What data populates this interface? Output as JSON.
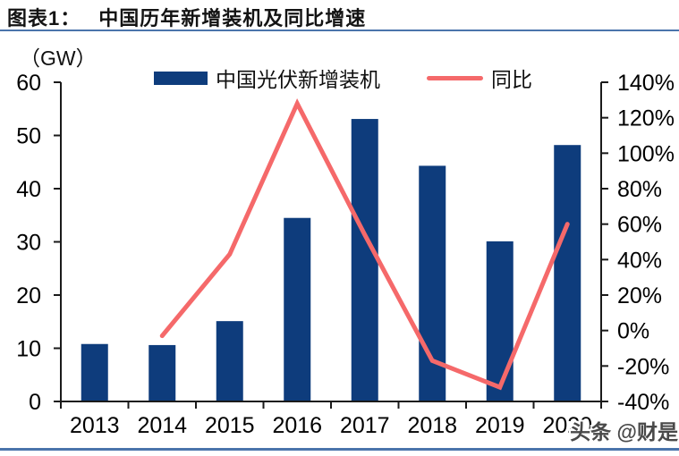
{
  "header": {
    "figure_label": "图表1：",
    "figure_title": "中国历年新增装机及同比增速"
  },
  "legend": {
    "items": [
      {
        "label": "中国光伏新增装机",
        "type": "bar"
      },
      {
        "label": "同比",
        "type": "line"
      }
    ]
  },
  "watermark": "头条 @财是",
  "colors": {
    "bar": "#0E3C7C",
    "line": "#F5696A",
    "rule": "#4A74AB",
    "axis": "#1A1A1A",
    "text": "#000000"
  },
  "chart_data": {
    "type": "bar",
    "title": "中国历年新增装机及同比增速",
    "categories": [
      "2013",
      "2014",
      "2015",
      "2016",
      "2017",
      "2018",
      "2019",
      "2020"
    ],
    "series": [
      {
        "name": "中国光伏新增装机",
        "type": "bar",
        "axis": "left",
        "unit": "GW",
        "values": [
          10.8,
          10.6,
          15.1,
          34.5,
          53.1,
          44.3,
          30.1,
          48.2
        ]
      },
      {
        "name": "同比",
        "type": "line",
        "axis": "right",
        "unit": "%",
        "values": [
          null,
          -3,
          43,
          128,
          54,
          -17,
          -32,
          60
        ]
      }
    ],
    "left_axis": {
      "label": "（GW）",
      "min": 0,
      "max": 60,
      "step": 10
    },
    "right_axis": {
      "min": -40,
      "max": 140,
      "step": 20,
      "suffix": "%"
    },
    "grid": false,
    "legend_position": "top"
  }
}
